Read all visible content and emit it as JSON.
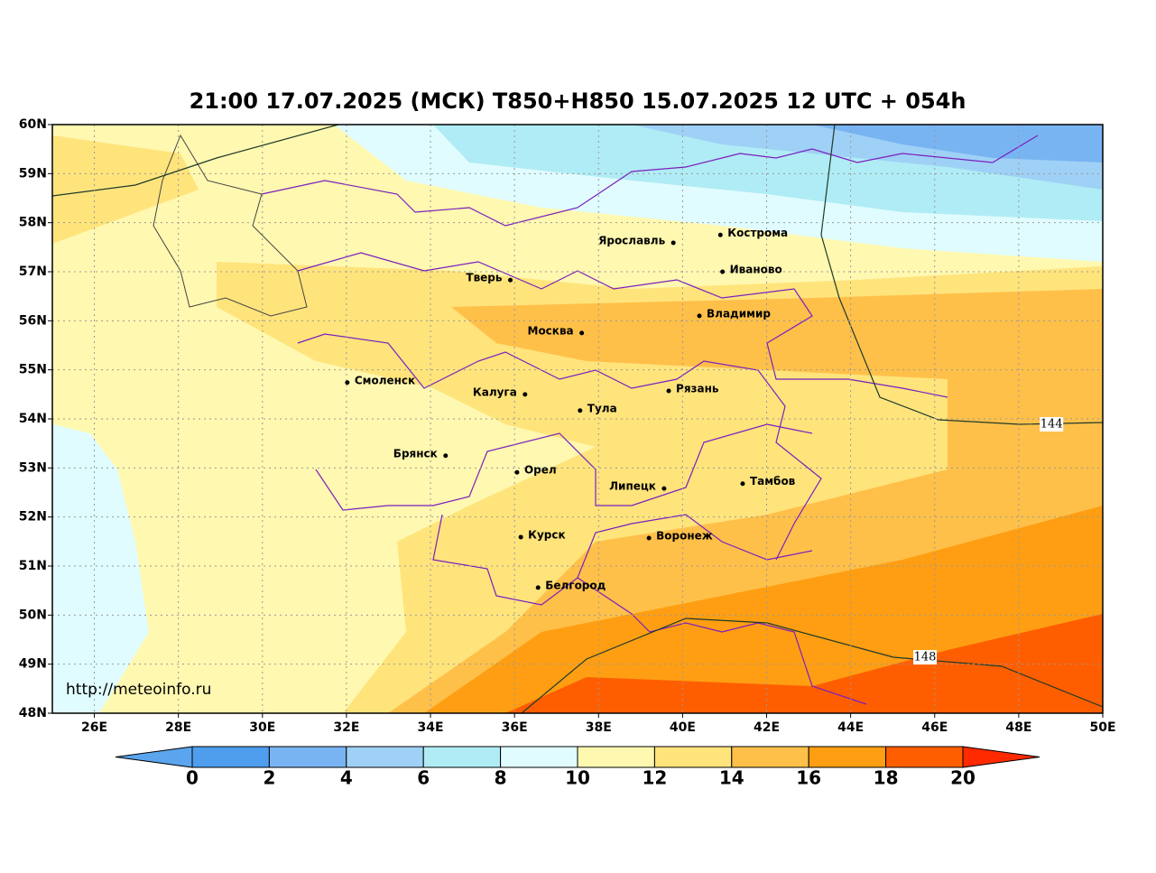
{
  "title": "21:00 17.07.2025 (МСК) T850+H850 15.07.2025 12 UTC + 054h",
  "map": {
    "xlim": [
      25,
      50
    ],
    "ylim": [
      48,
      60
    ],
    "grid": true,
    "xticks": [
      {
        "value": 26,
        "label": "26E"
      },
      {
        "value": 28,
        "label": "28E"
      },
      {
        "value": 30,
        "label": "30E"
      },
      {
        "value": 32,
        "label": "32E"
      },
      {
        "value": 34,
        "label": "34E"
      },
      {
        "value": 36,
        "label": "36E"
      },
      {
        "value": 38,
        "label": "38E"
      },
      {
        "value": 40,
        "label": "40E"
      },
      {
        "value": 42,
        "label": "42E"
      },
      {
        "value": 44,
        "label": "44E"
      },
      {
        "value": 46,
        "label": "46E"
      },
      {
        "value": 48,
        "label": "48E"
      },
      {
        "value": 50,
        "label": "50E"
      }
    ],
    "yticks": [
      {
        "value": 48,
        "label": "48N"
      },
      {
        "value": 49,
        "label": "49N"
      },
      {
        "value": 50,
        "label": "50N"
      },
      {
        "value": 51,
        "label": "51N"
      },
      {
        "value": 52,
        "label": "52N"
      },
      {
        "value": 53,
        "label": "53N"
      },
      {
        "value": 54,
        "label": "54N"
      },
      {
        "value": 55,
        "label": "55N"
      },
      {
        "value": 56,
        "label": "56N"
      },
      {
        "value": 57,
        "label": "57N"
      },
      {
        "value": 58,
        "label": "58N"
      },
      {
        "value": 59,
        "label": "59N"
      },
      {
        "value": 60,
        "label": "60N"
      }
    ],
    "cities": [
      {
        "name": "Кострома",
        "lon": 40.9,
        "lat": 57.75
      },
      {
        "name": "Ярославль",
        "lon": 39.78,
        "lat": 57.59
      },
      {
        "name": "Иваново",
        "lon": 40.95,
        "lat": 57.0
      },
      {
        "name": "Тверь",
        "lon": 35.9,
        "lat": 56.83
      },
      {
        "name": "Владимир",
        "lon": 40.4,
        "lat": 56.1
      },
      {
        "name": "Москва",
        "lon": 37.6,
        "lat": 55.75
      },
      {
        "name": "Смоленск",
        "lon": 32.02,
        "lat": 54.74
      },
      {
        "name": "Калуга",
        "lon": 36.25,
        "lat": 54.5
      },
      {
        "name": "Рязань",
        "lon": 39.67,
        "lat": 54.57
      },
      {
        "name": "Тула",
        "lon": 37.56,
        "lat": 54.17
      },
      {
        "name": "Брянск",
        "lon": 34.36,
        "lat": 53.25
      },
      {
        "name": "Орел",
        "lon": 36.06,
        "lat": 52.91
      },
      {
        "name": "Липецк",
        "lon": 39.56,
        "lat": 52.58
      },
      {
        "name": "Тамбов",
        "lon": 41.43,
        "lat": 52.68
      },
      {
        "name": "Курск",
        "lon": 36.15,
        "lat": 51.59
      },
      {
        "name": "Воронеж",
        "lon": 39.2,
        "lat": 51.57
      },
      {
        "name": "Белгород",
        "lon": 36.56,
        "lat": 50.56
      }
    ],
    "contours": [
      {
        "value": 144,
        "lon": 48.78,
        "lat": 53.89
      },
      {
        "value": 148,
        "lon": 45.77,
        "lat": 49.14
      }
    ]
  },
  "colorbar": {
    "ticks": [
      0,
      2,
      4,
      6,
      8,
      10,
      12,
      14,
      16,
      18,
      20
    ],
    "colors": [
      "#5aa5ee",
      "#4f9ded",
      "#78b4f2",
      "#9fd0f6",
      "#b0ecf5",
      "#e0fcfe",
      "#fff8b0",
      "#ffe47c",
      "#ffc04a",
      "#ff9e12",
      "#ff5e00",
      "#ff2a00"
    ]
  },
  "source": "http://meteoinfo.ru"
}
